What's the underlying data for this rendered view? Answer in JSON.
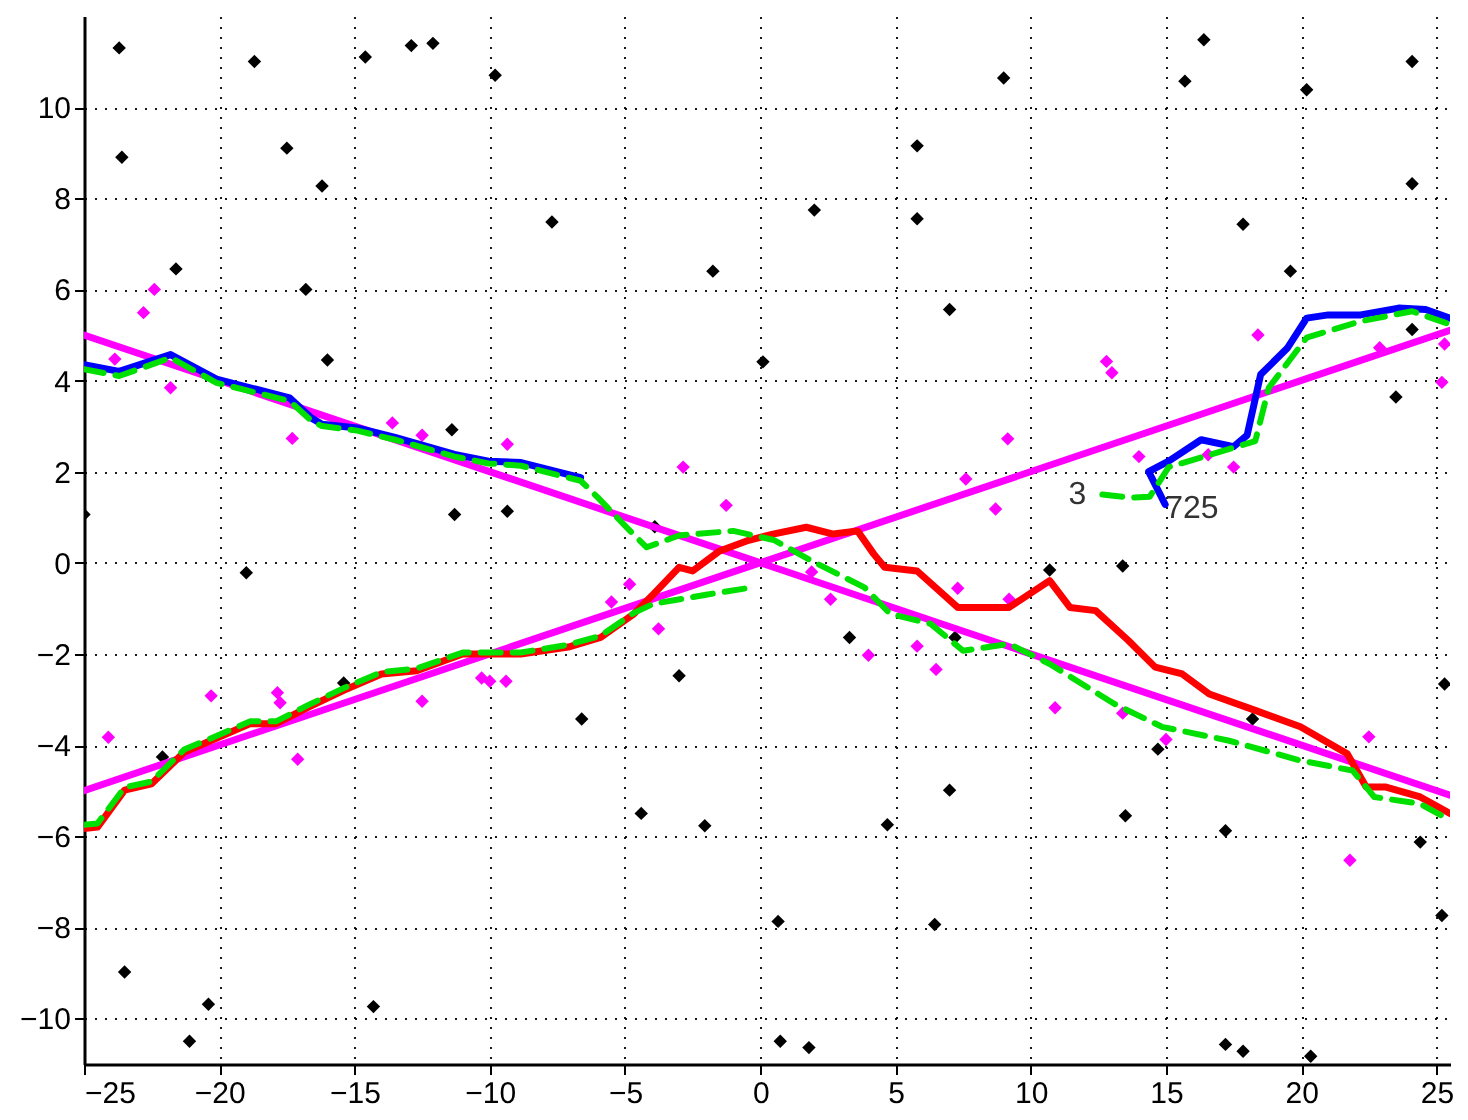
{
  "chart_data": {
    "type": "line",
    "xlim": [
      -25,
      25.5
    ],
    "ylim": [
      -11,
      12
    ],
    "xticks": [
      -25,
      -20,
      -15,
      -10,
      -5,
      0,
      5,
      10,
      15,
      20,
      25
    ],
    "yticks": [
      -10,
      -8,
      -6,
      -4,
      -2,
      0,
      2,
      4,
      6,
      8,
      10
    ],
    "grid": true,
    "annotations": [
      {
        "text": "3",
        "x": 12.65,
        "y": 1.5
      },
      {
        "text": "725",
        "x": 14.97,
        "y": 1.28
      }
    ],
    "series": [
      {
        "type": "scatter",
        "marker": "diamond",
        "color": "#000000",
        "x": [
          -23.7,
          -23.6,
          -21.6,
          -18.7,
          -17.5,
          -16.2,
          -16.8,
          -16.0,
          -14.6,
          -12.9,
          -12.1,
          -9.8,
          -7.7,
          -11.4,
          -11.3,
          -9.35,
          -25,
          -1.75,
          -3.9,
          0.1,
          2.0,
          5.8,
          5.8,
          7.0,
          9.0,
          15.7,
          16.4,
          17.85,
          19.6,
          20.2,
          24.1,
          24.1,
          24.1,
          23.5,
          -19.0,
          -22.1,
          -15.4,
          -23.5,
          -20.4,
          -21.1,
          -14.3,
          -6.6,
          -3.0,
          -4.4,
          -2.05,
          10.7,
          13.4,
          3.3,
          7.2,
          14.7,
          18.2,
          25.3,
          7.0,
          4.7,
          13.5,
          17.2,
          24.4,
          25.2,
          0.66,
          6.45,
          0.74,
          1.8,
          17.2,
          17.85,
          20.35
        ],
        "values": [
          11.3,
          8.9,
          6.45,
          11.0,
          9.1,
          8.27,
          6.0,
          4.45,
          11.1,
          11.35,
          11.4,
          10.7,
          7.48,
          2.92,
          1.06,
          1.13,
          1.06,
          6.4,
          0.79,
          4.41,
          7.74,
          9.15,
          7.55,
          5.56,
          10.64,
          10.57,
          11.48,
          7.43,
          6.4,
          10.38,
          11.0,
          8.32,
          5.12,
          3.64,
          -0.22,
          -4.26,
          -2.64,
          -8.98,
          -9.69,
          -10.5,
          -9.74,
          -3.43,
          -2.48,
          -5.5,
          -5.77,
          -0.16,
          -0.07,
          -1.64,
          -1.64,
          -4.09,
          -3.43,
          -2.66,
          -4.99,
          -5.75,
          -5.55,
          -5.88,
          -6.13,
          -7.74,
          -7.87,
          -7.94,
          -10.5,
          -10.64,
          -10.57,
          -10.72,
          -10.83
        ]
      },
      {
        "type": "scatter",
        "marker": "diamond",
        "color": "#ff00ff",
        "x": [
          -23.86,
          -22.8,
          -22.4,
          -21.8,
          -17.3,
          -13.6,
          -12.5,
          -9.35,
          -2.85,
          -1.26,
          12.8,
          13.0,
          9.15,
          7.6,
          8.7,
          12.07,
          14.0,
          16.56,
          17.5,
          18.4,
          22.9,
          25.2,
          25.3,
          -24.1,
          -20.3,
          -17.85,
          -17.75,
          -17.1,
          -12.5,
          -10.3,
          -10.0,
          -9.4,
          -5.5,
          -4.83,
          -3.76,
          1.9,
          2.6,
          7.3,
          9.2,
          4.0,
          5.8,
          6.5,
          10.9,
          13.4,
          15.0,
          22.5,
          21.8
        ],
        "values": [
          4.47,
          5.49,
          6.0,
          3.84,
          2.73,
          3.07,
          2.8,
          2.6,
          2.1,
          1.26,
          4.42,
          4.17,
          2.72,
          1.84,
          1.18,
          null,
          2.33,
          2.37,
          2.1,
          5.0,
          4.72,
          3.96,
          4.8,
          -3.83,
          -2.92,
          -2.85,
          -3.07,
          -4.31,
          -3.04,
          -2.53,
          -2.6,
          -2.6,
          -0.86,
          -0.47,
          -1.45,
          -0.2,
          -0.8,
          -0.56,
          -0.8,
          -2.03,
          -1.83,
          -2.34,
          -3.18,
          -3.3,
          -3.88,
          -3.82,
          -6.53
        ]
      },
      {
        "color": "#ff00ff",
        "x": [
          -25,
          25.5
        ],
        "values": [
          5.0,
          -5.1
        ]
      },
      {
        "color": "#ff00ff",
        "x": [
          -25,
          25.5
        ],
        "values": [
          -5.0,
          5.1
        ]
      },
      {
        "color": "#0000ff",
        "x": [
          -25,
          -23.7,
          -21.8,
          -20.1,
          -17.4,
          -16.6,
          -16.2,
          -14.9,
          -13.5,
          -11.3,
          -10.05,
          -8.84,
          -6.64
        ],
        "values": [
          4.35,
          4.2,
          4.57,
          4.03,
          3.62,
          3.18,
          3.04,
          2.96,
          2.75,
          2.38,
          2.23,
          2.2,
          1.87
        ]
      },
      {
        "color": "#0000ff",
        "x": [
          14.97,
          14.36,
          15.1,
          16.3,
          17.5,
          18.0,
          18.5,
          19.5,
          20.2,
          21.0,
          22.2,
          23.6,
          24.6,
          25.5
        ],
        "values": [
          1.28,
          2.0,
          2.23,
          2.7,
          2.55,
          2.8,
          4.13,
          4.72,
          5.37,
          5.44,
          5.44,
          5.59,
          5.56,
          5.37
        ]
      },
      {
        "color": "#ff0000",
        "x": [
          -25,
          -24.5,
          -23.5,
          -22.5,
          -21.3,
          -20.3,
          -18.85,
          -17.9,
          -16.7,
          -15.4,
          -14.0,
          -12.7,
          -11.0,
          -8.85,
          -7.1,
          -5.9,
          -4.67,
          -3.95,
          -3.0,
          -2.5,
          -1.5,
          -0.5,
          0.47,
          1.7,
          2.7,
          3.6,
          4.2,
          4.6,
          5.8,
          7.3,
          9.2,
          10.7,
          11.45,
          12.4,
          13.6,
          14.6,
          15.6,
          16.6,
          18.3,
          19.97,
          21.7,
          22.4,
          23.1,
          24.4,
          25.5
        ],
        "values": [
          -5.83,
          -5.8,
          -4.99,
          -4.85,
          -4.16,
          -3.9,
          -3.53,
          -3.53,
          -3.17,
          -2.8,
          -2.44,
          -2.37,
          -2.0,
          -2.0,
          -1.85,
          -1.64,
          -1.12,
          -0.69,
          -0.1,
          -0.18,
          0.26,
          0.48,
          0.63,
          0.78,
          0.63,
          0.7,
          0.19,
          -0.1,
          -0.18,
          -0.98,
          -0.98,
          -0.39,
          -0.98,
          -1.05,
          -1.7,
          -2.29,
          -2.44,
          -2.88,
          -3.24,
          -3.6,
          -4.19,
          -4.92,
          -4.92,
          -5.14,
          -5.5
        ]
      },
      {
        "color": "#00e000",
        "line_style": "dashed",
        "x": [
          -25,
          -23.7,
          -21.8,
          -20.1,
          -17.4,
          -16.6,
          -16.2,
          -14.9,
          -13.5,
          -11.3,
          -10.05,
          -8.84,
          -6.64,
          -6.0,
          -4.93,
          -4.2,
          -3.0,
          -1.0,
          0.5,
          1.9,
          3.85,
          4.8,
          6.3,
          7.5,
          9.2,
          10.7,
          13.1,
          14.85,
          17.3,
          19.97,
          21.9,
          22.7,
          24.4,
          25.5
        ],
        "values": [
          4.25,
          4.1,
          4.5,
          3.95,
          3.55,
          3.12,
          3.0,
          2.9,
          2.7,
          2.33,
          2.18,
          2.13,
          1.8,
          1.43,
          0.77,
          0.34,
          0.6,
          0.7,
          0.5,
          0.04,
          -0.54,
          -1.12,
          -1.34,
          -1.93,
          -1.78,
          -2.22,
          -3.1,
          -3.6,
          -3.9,
          -4.34,
          -4.56,
          -5.14,
          -5.29,
          -5.65
        ]
      },
      {
        "color": "#00e000",
        "line_style": "dashed",
        "x": [
          -25,
          -24.5,
          -23.5,
          -22.5,
          -21.3,
          -20.3,
          -18.85,
          -17.9,
          -16.7,
          -15.4,
          -14.0,
          -12.7,
          -11.0,
          -8.85,
          -7.1,
          -5.9,
          -4.67,
          -3.95,
          -2.0,
          -0.3
        ],
        "values": [
          -5.75,
          -5.72,
          -4.93,
          -4.8,
          -4.1,
          -3.85,
          -3.48,
          -3.48,
          -3.12,
          -2.75,
          -2.4,
          -2.32,
          -1.97,
          -1.97,
          -1.8,
          -1.6,
          -1.1,
          -0.9,
          -0.7,
          -0.54
        ]
      },
      {
        "color": "#00e000",
        "line_style": "dashed",
        "x": [
          12.65,
          13.7,
          14.4,
          15.1,
          18.3,
          18.8,
          20.2,
          22.2,
          24.1,
          25.5
        ],
        "values": [
          1.5,
          1.43,
          1.45,
          2.1,
          2.67,
          3.84,
          4.94,
          5.3,
          5.52,
          5.23
        ]
      }
    ]
  }
}
